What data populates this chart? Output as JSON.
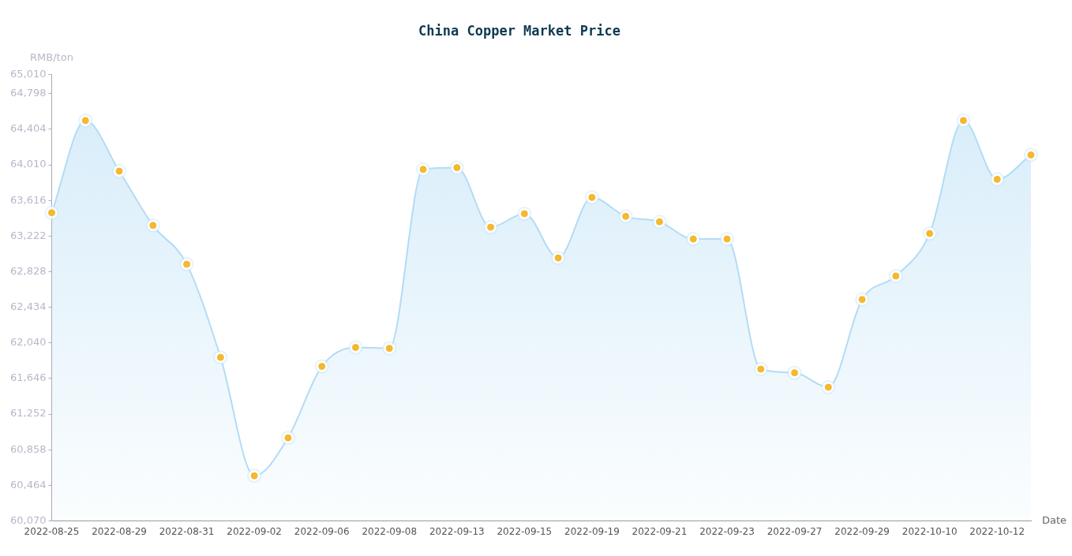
{
  "chart_data": {
    "type": "area",
    "title": "China Copper Market Price",
    "xlabel": "Date",
    "ylabel": "RMB/ton",
    "categories": [
      "2022-08-25",
      null,
      "2022-08-29",
      null,
      "2022-08-31",
      null,
      "2022-09-02",
      null,
      "2022-09-06",
      null,
      "2022-09-08",
      null,
      "2022-09-13",
      null,
      "2022-09-15",
      null,
      "2022-09-19",
      null,
      "2022-09-21",
      null,
      "2022-09-23",
      null,
      "2022-09-27",
      null,
      "2022-09-29",
      null,
      "2022-10-10",
      null,
      "2022-10-12",
      null
    ],
    "series": [
      {
        "color": "#b3dcf5",
        "values": [
          63480,
          64500,
          63940,
          63340,
          62910,
          61880,
          60570,
          60990,
          61780,
          61990,
          61980,
          63960,
          63980,
          63320,
          63470,
          62980,
          63650,
          63440,
          63380,
          63190,
          63190,
          61750,
          61710,
          61550,
          62520,
          62780,
          63250,
          64500,
          63850,
          64120
        ]
      },
      {
        "type": "scatter",
        "color": "#f5b82e",
        "values": [
          63480,
          64500,
          63940,
          63340,
          62910,
          61880,
          60570,
          60990,
          61780,
          61990,
          61980,
          63960,
          63980,
          63320,
          63470,
          62980,
          63650,
          63440,
          63380,
          63190,
          63190,
          61750,
          61710,
          61550,
          62520,
          62780,
          63250,
          64500,
          63850,
          64120
        ]
      }
    ],
    "ylim": [
      60070,
      65010
    ],
    "yticks": [
      {
        "value": 60070,
        "label": "60,070"
      },
      {
        "value": 60464,
        "label": "60,464"
      },
      {
        "value": 60858,
        "label": "60,858"
      },
      {
        "value": 61252,
        "label": "61,252"
      },
      {
        "value": 61646,
        "label": "61,646"
      },
      {
        "value": 62040,
        "label": "62,040"
      },
      {
        "value": 62434,
        "label": "62,434"
      },
      {
        "value": 62828,
        "label": "62,828"
      },
      {
        "value": 63222,
        "label": "63,222"
      },
      {
        "value": 63616,
        "label": "63,616"
      },
      {
        "value": 64010,
        "label": "64,010"
      },
      {
        "value": 64404,
        "label": "64,404"
      },
      {
        "value": 64798,
        "label": "64,798"
      },
      {
        "value": 65010,
        "label": "65,010"
      }
    ],
    "grid": false,
    "legend": false,
    "marker": "circle",
    "line_style": "solid"
  }
}
